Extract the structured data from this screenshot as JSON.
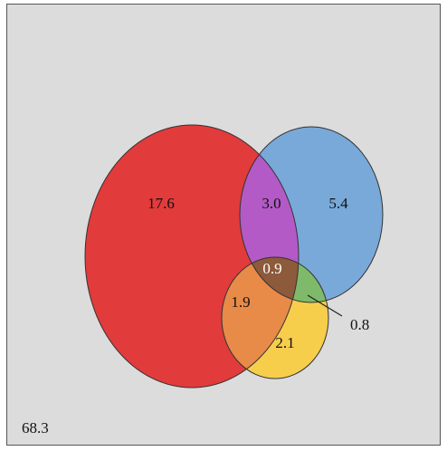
{
  "colors": {
    "background": "#dcdcdc",
    "red": "#e13b3b",
    "blue": "#78a9d8",
    "yellow": "#f7cd4c",
    "purple": "#b35ac6",
    "orange": "#e88a48",
    "green": "#7fba6a",
    "brown": "#8d5a3b",
    "stroke": "#333333"
  },
  "regions": {
    "red_only": "17.6",
    "red_blue": "3.0",
    "blue_only": "5.4",
    "red_blue_yellow": "0.9",
    "red_yellow": "1.9",
    "blue_yellow": "0.8",
    "yellow_only": "2.1",
    "outside": "68.3"
  }
}
